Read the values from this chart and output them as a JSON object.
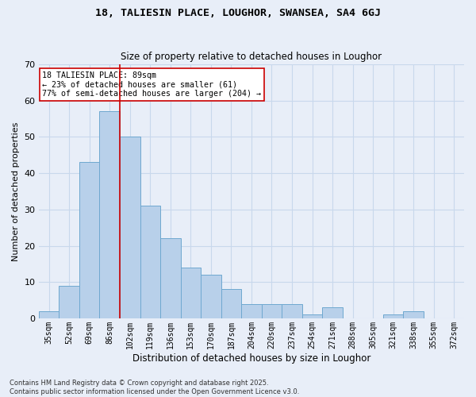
{
  "title_line1": "18, TALIESIN PLACE, LOUGHOR, SWANSEA, SA4 6GJ",
  "title_line2": "Size of property relative to detached houses in Loughor",
  "xlabel": "Distribution of detached houses by size in Loughor",
  "ylabel": "Number of detached properties",
  "categories": [
    "35sqm",
    "52sqm",
    "69sqm",
    "86sqm",
    "102sqm",
    "119sqm",
    "136sqm",
    "153sqm",
    "170sqm",
    "187sqm",
    "204sqm",
    "220sqm",
    "237sqm",
    "254sqm",
    "271sqm",
    "288sqm",
    "305sqm",
    "321sqm",
    "338sqm",
    "355sqm",
    "372sqm"
  ],
  "values": [
    2,
    9,
    43,
    57,
    50,
    31,
    22,
    14,
    12,
    8,
    4,
    4,
    4,
    1,
    3,
    0,
    0,
    1,
    2,
    0,
    0
  ],
  "bar_color": "#B8D0EA",
  "bar_edge_color": "#6FA8D0",
  "vline_index": 3,
  "vline_color": "#CC0000",
  "annotation_text": "18 TALIESIN PLACE: 89sqm\n← 23% of detached houses are smaller (61)\n77% of semi-detached houses are larger (204) →",
  "annotation_box_color": "#ffffff",
  "annotation_box_edge": "#CC0000",
  "grid_color": "#C8D8EC",
  "bg_color": "#E8EEF8",
  "footer": "Contains HM Land Registry data © Crown copyright and database right 2025.\nContains public sector information licensed under the Open Government Licence v3.0.",
  "ylim": [
    0,
    70
  ],
  "yticks": [
    0,
    10,
    20,
    30,
    40,
    50,
    60,
    70
  ]
}
